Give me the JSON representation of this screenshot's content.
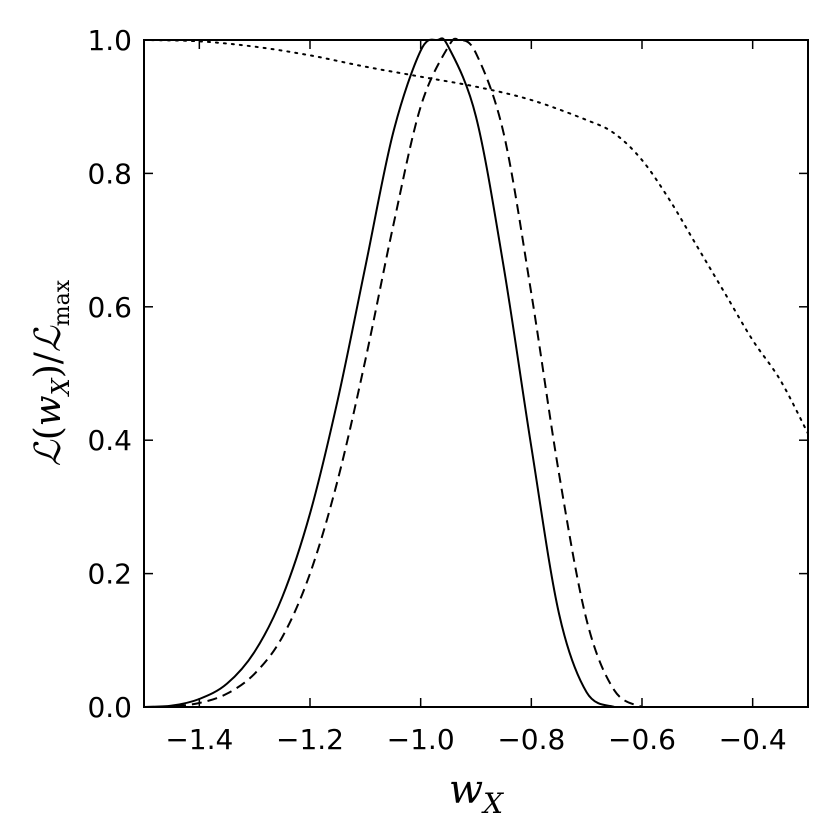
{
  "chart_data": {
    "type": "line",
    "xlabel": "w_X",
    "ylabel": "L(w_X)/L_max",
    "xlim": [
      -1.5,
      -0.3
    ],
    "ylim": [
      0.0,
      1.0
    ],
    "xticks": [
      -1.4,
      -1.2,
      -1.0,
      -0.8,
      -0.6,
      -0.4
    ],
    "xtick_labels": [
      "−1.4",
      "−1.2",
      "−1.0",
      "−0.8",
      "−0.6",
      "−0.4"
    ],
    "yticks": [
      0.0,
      0.2,
      0.4,
      0.6,
      0.8,
      1.0
    ],
    "ytick_labels": [
      "0.0",
      "0.2",
      "0.4",
      "0.6",
      "0.8",
      "1.0"
    ],
    "grid": false,
    "legend": "none",
    "series": [
      {
        "style": "solid",
        "color": "#000000",
        "x": [
          -1.5,
          -1.45,
          -1.4,
          -1.35,
          -1.3,
          -1.25,
          -1.2,
          -1.15,
          -1.1,
          -1.05,
          -1.0,
          -0.97,
          -0.95,
          -0.9,
          -0.85,
          -0.8,
          -0.75,
          -0.7,
          -0.65
        ],
        "y": [
          0.0,
          0.002,
          0.012,
          0.035,
          0.083,
          0.165,
          0.29,
          0.46,
          0.66,
          0.86,
          0.984,
          1.0,
          0.99,
          0.885,
          0.66,
          0.39,
          0.14,
          0.022,
          0.0
        ]
      },
      {
        "style": "dashed",
        "color": "#000000",
        "x": [
          -1.5,
          -1.45,
          -1.4,
          -1.35,
          -1.3,
          -1.25,
          -1.2,
          -1.15,
          -1.1,
          -1.05,
          -1.0,
          -0.95,
          -0.93,
          -0.9,
          -0.85,
          -0.8,
          -0.75,
          -0.7,
          -0.65,
          -0.6
        ],
        "y": [
          0.0,
          0.001,
          0.006,
          0.02,
          0.05,
          0.105,
          0.2,
          0.34,
          0.52,
          0.72,
          0.9,
          0.99,
          1.0,
          0.98,
          0.86,
          0.62,
          0.35,
          0.13,
          0.025,
          0.0
        ]
      },
      {
        "style": "dotted",
        "color": "#000000",
        "x": [
          -1.5,
          -1.4,
          -1.3,
          -1.2,
          -1.1,
          -1.0,
          -0.9,
          -0.8,
          -0.7,
          -0.65,
          -0.6,
          -0.55,
          -0.5,
          -0.45,
          -0.4,
          -0.35,
          -0.3
        ],
        "y": [
          1.0,
          0.998,
          0.99,
          0.977,
          0.96,
          0.945,
          0.93,
          0.91,
          0.88,
          0.86,
          0.82,
          0.76,
          0.69,
          0.62,
          0.55,
          0.49,
          0.41
        ]
      }
    ]
  }
}
